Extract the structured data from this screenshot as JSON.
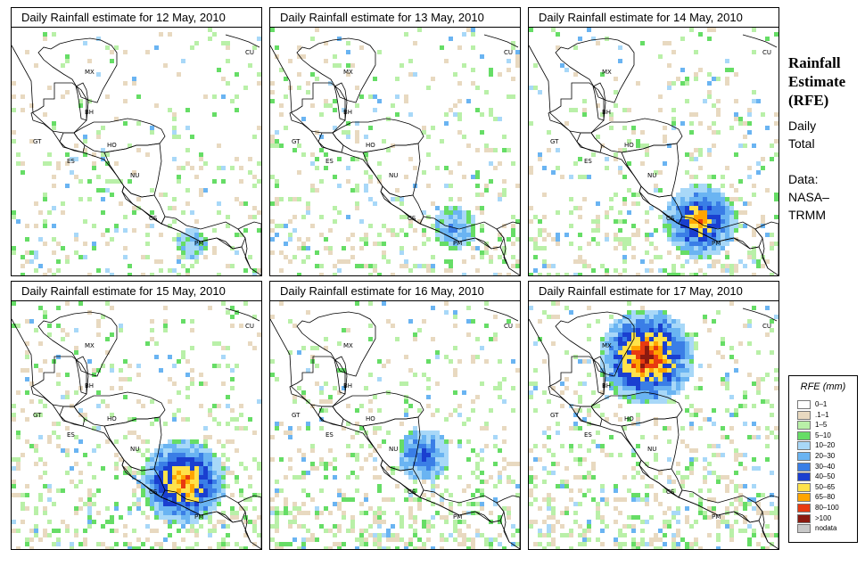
{
  "panels": [
    {
      "title": "Daily Rainfall estimate for  12 May, 2010",
      "day": 12,
      "intensity": 0.45,
      "heavy": [
        [
          200,
          240,
          1
        ]
      ]
    },
    {
      "title": "Daily Rainfall estimate for  13 May, 2010",
      "day": 13,
      "intensity": 0.6,
      "heavy": [
        [
          205,
          222,
          2
        ]
      ]
    },
    {
      "title": "Daily Rainfall estimate for  14 May, 2010",
      "day": 14,
      "intensity": 0.75,
      "heavy": [
        [
          190,
          215,
          5
        ]
      ]
    },
    {
      "title": "Daily Rainfall estimate for  15 May, 2010",
      "day": 15,
      "intensity": 0.95,
      "heavy": [
        [
          190,
          200,
          6
        ]
      ]
    },
    {
      "title": "Daily Rainfall estimate for  16 May, 2010",
      "day": 16,
      "intensity": 1.1,
      "heavy": [
        [
          170,
          170,
          3
        ]
      ]
    },
    {
      "title": "Daily Rainfall estimate for  17 May, 2010",
      "day": 17,
      "intensity": 1.2,
      "heavy": [
        [
          130,
          60,
          7
        ]
      ]
    }
  ],
  "country_labels": [
    "MX",
    "BH",
    "GT",
    "HO",
    "ES",
    "NU",
    "CS",
    "PM",
    "CU"
  ],
  "side": {
    "title_line1": "Rainfall",
    "title_line2": "Estimate",
    "title_line3": "(RFE)",
    "subtitle_line1": "Daily",
    "subtitle_line2": "Total",
    "data_line1": "Data:",
    "data_line2": "NASA–",
    "data_line3": "TRMM"
  },
  "legend": {
    "title": "RFE (mm)",
    "items": [
      {
        "label": "0–1",
        "color": "#ffffff"
      },
      {
        "label": ".1–1",
        "color": "#e8d9c0"
      },
      {
        "label": "1–5",
        "color": "#b9f0a8"
      },
      {
        "label": "5–10",
        "color": "#66dd66"
      },
      {
        "label": "10–20",
        "color": "#a8d8f8"
      },
      {
        "label": "20–30",
        "color": "#6ab4f2"
      },
      {
        "label": "30–40",
        "color": "#3a7ee6"
      },
      {
        "label": "40–50",
        "color": "#1a3fd0"
      },
      {
        "label": "50–65",
        "color": "#ffe24a"
      },
      {
        "label": "65–80",
        "color": "#ffa500"
      },
      {
        "label": "80–100",
        "color": "#e83a10"
      },
      {
        "label": ">100",
        "color": "#8b1a10"
      },
      {
        "label": "nodata",
        "color": "#c8c8c8"
      }
    ]
  }
}
